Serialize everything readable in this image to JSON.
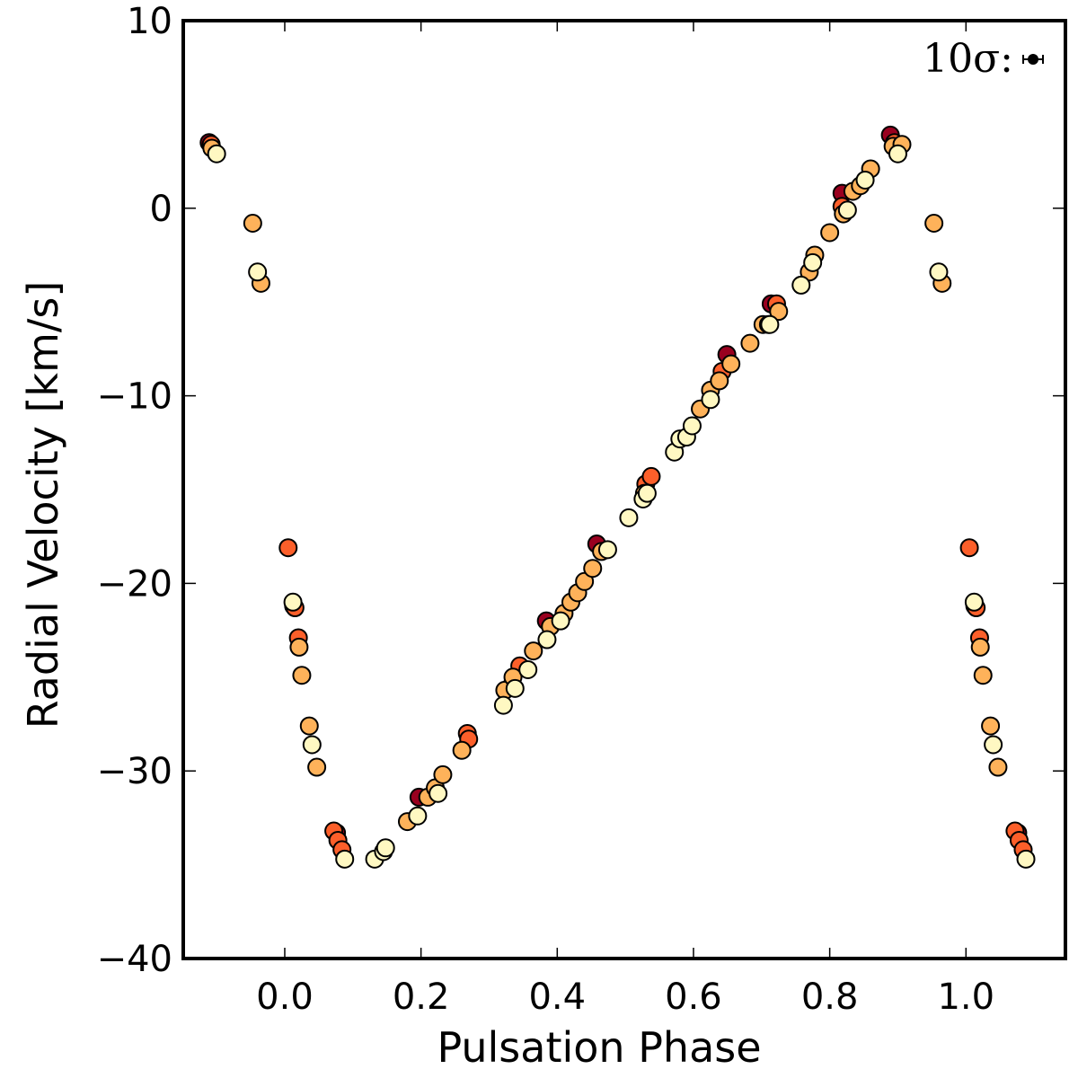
{
  "chart_data": {
    "type": "scatter",
    "title": "",
    "xlabel": "Pulsation Phase",
    "ylabel": "Radial Velocity [km/s]",
    "xlim": [
      -0.149,
      1.146
    ],
    "ylim": [
      -40,
      10
    ],
    "xticks": [
      0.0,
      0.2,
      0.4,
      0.6,
      0.8,
      1.0
    ],
    "xtick_labels": [
      "0.0",
      "0.2",
      "0.4",
      "0.6",
      "0.8",
      "1.0"
    ],
    "yticks": [
      10,
      0,
      -10,
      -20,
      -30,
      -40
    ],
    "ytick_labels": [
      "10",
      "0",
      "−10",
      "−20",
      "−30",
      "−40"
    ],
    "grid": false,
    "legend": "none",
    "annotation": {
      "text": "10σ:",
      "meaning": "error bar scale (10 sigma)",
      "placement": "top-right"
    },
    "color_groups": {
      "dark_red": "#99001f",
      "red_orange": "#fc5f2a",
      "orange": "#feb25a",
      "pale_yellow": "#fff8c2"
    },
    "series": [
      {
        "name": "dark_red",
        "color": "#99001f",
        "points": [
          [
            0.197,
            -31.4
          ],
          [
            0.384,
            -22.0
          ],
          [
            0.458,
            -17.9
          ],
          [
            0.649,
            -7.8
          ],
          [
            0.714,
            -5.1
          ],
          [
            0.818,
            0.8
          ],
          [
            0.889,
            3.9
          ],
          [
            0.013,
            -21.2
          ],
          [
            1.013,
            -21.2
          ],
          [
            0.076,
            -33.3
          ],
          [
            1.076,
            -33.3
          ],
          [
            -0.111,
            3.5
          ]
        ]
      },
      {
        "name": "red_orange",
        "color": "#fc5f2a",
        "points": [
          [
            0.005,
            -18.1
          ],
          [
            1.005,
            -18.1
          ],
          [
            0.015,
            -21.3
          ],
          [
            1.015,
            -21.3
          ],
          [
            0.02,
            -22.9
          ],
          [
            1.02,
            -22.9
          ],
          [
            0.072,
            -33.2
          ],
          [
            0.078,
            -33.7
          ],
          [
            0.084,
            -34.2
          ],
          [
            1.072,
            -33.2
          ],
          [
            1.078,
            -33.7
          ],
          [
            1.084,
            -34.2
          ],
          [
            0.268,
            -28.0
          ],
          [
            0.27,
            -28.3
          ],
          [
            0.53,
            -14.7
          ],
          [
            0.538,
            -14.3
          ],
          [
            0.722,
            -5.1
          ],
          [
            0.818,
            0.1
          ],
          [
            0.895,
            3.5
          ],
          [
            -0.108,
            3.4
          ],
          [
            0.332,
            -25.5
          ],
          [
            0.345,
            -24.4
          ],
          [
            0.642,
            -8.7
          ]
        ]
      },
      {
        "name": "orange",
        "color": "#feb25a",
        "points": [
          [
            -0.047,
            -0.8
          ],
          [
            0.953,
            -0.8
          ],
          [
            -0.035,
            -4.0
          ],
          [
            0.965,
            -4.0
          ],
          [
            0.021,
            -23.4
          ],
          [
            1.021,
            -23.4
          ],
          [
            0.025,
            -24.9
          ],
          [
            1.025,
            -24.9
          ],
          [
            0.036,
            -27.6
          ],
          [
            1.036,
            -27.6
          ],
          [
            0.047,
            -29.8
          ],
          [
            1.047,
            -29.8
          ],
          [
            -0.107,
            3.2
          ],
          [
            0.893,
            3.3
          ],
          [
            0.906,
            3.4
          ],
          [
            0.18,
            -32.7
          ],
          [
            0.21,
            -31.4
          ],
          [
            0.221,
            -30.9
          ],
          [
            0.232,
            -30.2
          ],
          [
            0.26,
            -28.9
          ],
          [
            0.323,
            -25.7
          ],
          [
            0.335,
            -25.0
          ],
          [
            0.365,
            -23.6
          ],
          [
            0.39,
            -22.3
          ],
          [
            0.41,
            -21.6
          ],
          [
            0.42,
            -21.0
          ],
          [
            0.43,
            -20.5
          ],
          [
            0.44,
            -19.9
          ],
          [
            0.452,
            -19.2
          ],
          [
            0.465,
            -18.3
          ],
          [
            0.528,
            -15.2
          ],
          [
            0.61,
            -10.7
          ],
          [
            0.625,
            -9.7
          ],
          [
            0.638,
            -9.2
          ],
          [
            0.655,
            -8.3
          ],
          [
            0.683,
            -7.2
          ],
          [
            0.702,
            -6.2
          ],
          [
            0.725,
            -5.5
          ],
          [
            0.77,
            -3.4
          ],
          [
            0.778,
            -2.5
          ],
          [
            0.8,
            -1.3
          ],
          [
            0.82,
            -0.3
          ],
          [
            0.834,
            0.9
          ],
          [
            0.845,
            1.2
          ],
          [
            0.86,
            2.1
          ]
        ]
      },
      {
        "name": "pale_yellow",
        "color": "#fff8c2",
        "points": [
          [
            -0.1,
            2.9
          ],
          [
            0.9,
            2.9
          ],
          [
            -0.04,
            -3.4
          ],
          [
            0.96,
            -3.4
          ],
          [
            0.012,
            -21.0
          ],
          [
            1.012,
            -21.0
          ],
          [
            0.04,
            -28.6
          ],
          [
            1.04,
            -28.6
          ],
          [
            0.088,
            -34.7
          ],
          [
            1.088,
            -34.7
          ],
          [
            0.132,
            -34.7
          ],
          [
            0.145,
            -34.3
          ],
          [
            0.148,
            -34.1
          ],
          [
            0.195,
            -32.4
          ],
          [
            0.225,
            -31.2
          ],
          [
            0.321,
            -26.5
          ],
          [
            0.338,
            -25.6
          ],
          [
            0.357,
            -24.6
          ],
          [
            0.385,
            -23.0
          ],
          [
            0.405,
            -22.0
          ],
          [
            0.474,
            -18.2
          ],
          [
            0.505,
            -16.5
          ],
          [
            0.526,
            -15.5
          ],
          [
            0.532,
            -15.2
          ],
          [
            0.572,
            -13.0
          ],
          [
            0.58,
            -12.3
          ],
          [
            0.59,
            -12.2
          ],
          [
            0.598,
            -11.6
          ],
          [
            0.625,
            -10.2
          ],
          [
            0.71,
            -6.2
          ],
          [
            0.712,
            -6.2
          ],
          [
            0.758,
            -4.1
          ],
          [
            0.775,
            -2.9
          ],
          [
            0.826,
            -0.1
          ],
          [
            0.852,
            1.5
          ]
        ]
      }
    ]
  }
}
